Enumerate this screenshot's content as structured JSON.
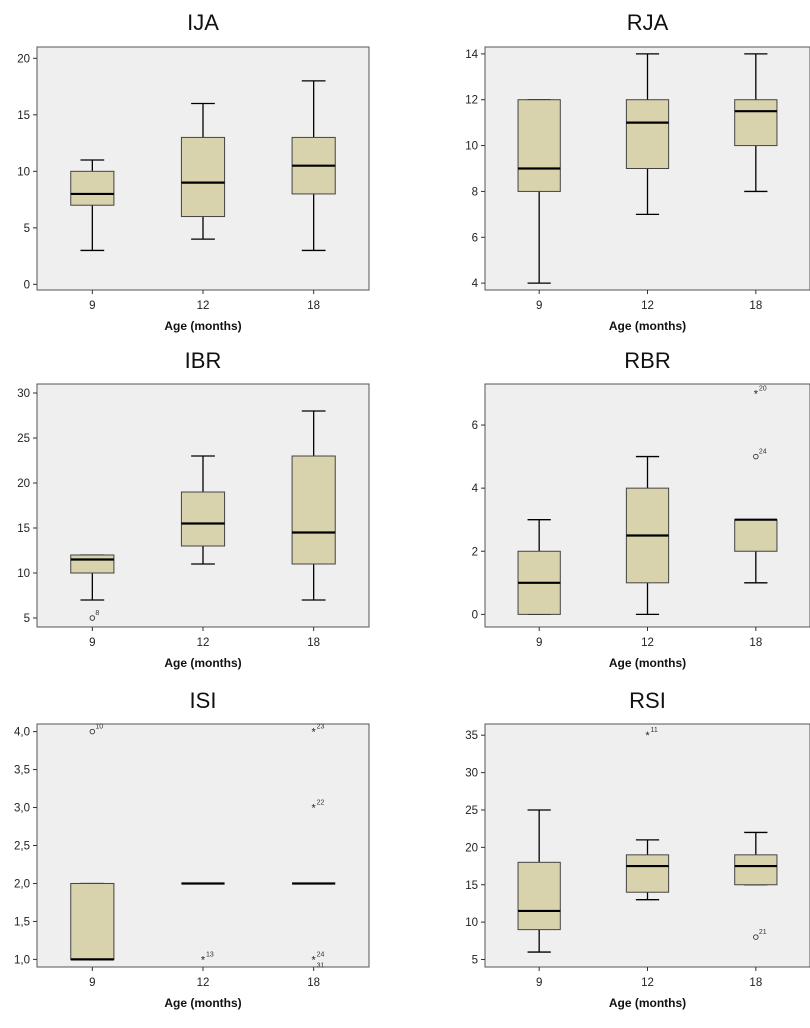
{
  "chart_data": [
    {
      "type": "boxplot",
      "title": "IJA",
      "xlabel": "Age (months)",
      "categories": [
        "9",
        "12",
        "18"
      ],
      "yticks": [
        "0",
        "5",
        "10",
        "15",
        "20"
      ],
      "ylim": [
        -0.5,
        21
      ],
      "boxes": [
        {
          "min": 3,
          "q1": 7,
          "median": 8,
          "q3": 10,
          "max": 11,
          "outliers": []
        },
        {
          "min": 4,
          "q1": 6,
          "median": 9,
          "q3": 13,
          "max": 16,
          "outliers": []
        },
        {
          "min": 3,
          "q1": 8,
          "median": 10.5,
          "q3": 13,
          "max": 18,
          "outliers": []
        }
      ]
    },
    {
      "type": "boxplot",
      "title": "RJA",
      "xlabel": "Age (months)",
      "categories": [
        "9",
        "12",
        "18"
      ],
      "yticks": [
        "4",
        "6",
        "8",
        "10",
        "12",
        "14"
      ],
      "ylim": [
        3.7,
        14.3
      ],
      "boxes": [
        {
          "min": 4,
          "q1": 8,
          "median": 9,
          "q3": 12,
          "max": 12,
          "outliers": []
        },
        {
          "min": 7,
          "q1": 9,
          "median": 11,
          "q3": 12,
          "max": 14,
          "outliers": []
        },
        {
          "min": 8,
          "q1": 10,
          "median": 11.5,
          "q3": 12,
          "max": 14,
          "outliers": []
        }
      ]
    },
    {
      "type": "boxplot",
      "title": "IBR",
      "xlabel": "Age (months)",
      "categories": [
        "9",
        "12",
        "18"
      ],
      "yticks": [
        "5",
        "10",
        "15",
        "20",
        "25",
        "30"
      ],
      "ylim": [
        4,
        31
      ],
      "boxes": [
        {
          "min": 7,
          "q1": 10,
          "median": 11.5,
          "q3": 12,
          "max": 12,
          "outliers": [
            {
              "value": 5,
              "marker": "o",
              "label": "8"
            }
          ]
        },
        {
          "min": 11,
          "q1": 13,
          "median": 15.5,
          "q3": 19,
          "max": 23,
          "outliers": []
        },
        {
          "min": 7,
          "q1": 11,
          "median": 14.5,
          "q3": 23,
          "max": 28,
          "outliers": []
        }
      ]
    },
    {
      "type": "boxplot",
      "title": "RBR",
      "xlabel": "Age (months)",
      "categories": [
        "9",
        "12",
        "18"
      ],
      "yticks": [
        "0",
        "2",
        "4",
        "6"
      ],
      "ylim": [
        -0.4,
        7.3
      ],
      "boxes": [
        {
          "min": 0,
          "q1": 0,
          "median": 1,
          "q3": 2,
          "max": 3,
          "outliers": []
        },
        {
          "min": 0,
          "q1": 1,
          "median": 2.5,
          "q3": 4,
          "max": 5,
          "outliers": []
        },
        {
          "min": 1,
          "q1": 2,
          "median": 3,
          "q3": 3,
          "max": 3,
          "outliers": [
            {
              "value": 5,
              "marker": "o",
              "label": "24"
            },
            {
              "value": 7,
              "marker": "*",
              "label": "20"
            }
          ]
        }
      ]
    },
    {
      "type": "boxplot",
      "title": "ISI",
      "xlabel": "Age (months)",
      "categories": [
        "9",
        "12",
        "18"
      ],
      "yticks": [
        "1,0",
        "1,5",
        "2,0",
        "2,5",
        "3,0",
        "3,5",
        "4,0"
      ],
      "ylim": [
        0.9,
        4.1
      ],
      "boxes": [
        {
          "min": 1,
          "q1": 1,
          "median": 1,
          "q3": 2,
          "max": 2,
          "outliers": [
            {
              "value": 4,
              "marker": "o",
              "label": "10"
            }
          ]
        },
        {
          "min": 2,
          "q1": 2,
          "median": 2,
          "q3": 2,
          "max": 2,
          "outliers": [
            {
              "value": 1,
              "marker": "*",
              "label": "13"
            }
          ]
        },
        {
          "min": 2,
          "q1": 2,
          "median": 2,
          "q3": 2,
          "max": 2,
          "outliers": [
            {
              "value": 1,
              "marker": "*",
              "label": "24"
            },
            {
              "value": 1,
              "marker": "",
              "label": "31"
            },
            {
              "value": 3,
              "marker": "*",
              "label": "22"
            },
            {
              "value": 4,
              "marker": "*",
              "label": "23"
            }
          ]
        }
      ]
    },
    {
      "type": "boxplot",
      "title": "RSI",
      "xlabel": "Age (months)",
      "categories": [
        "9",
        "12",
        "18"
      ],
      "yticks": [
        "5",
        "10",
        "15",
        "20",
        "25",
        "30",
        "35"
      ],
      "ylim": [
        4,
        36.5
      ],
      "boxes": [
        {
          "min": 6,
          "q1": 9,
          "median": 11.5,
          "q3": 18,
          "max": 25,
          "outliers": []
        },
        {
          "min": 13,
          "q1": 14,
          "median": 17.5,
          "q3": 19,
          "max": 21,
          "outliers": [
            {
              "value": 35,
              "marker": "*",
              "label": "11"
            }
          ]
        },
        {
          "min": 15,
          "q1": 15,
          "median": 17.5,
          "q3": 19,
          "max": 22,
          "outliers": [
            {
              "value": 8,
              "marker": "o",
              "label": "21"
            }
          ]
        }
      ]
    }
  ],
  "colors": {
    "box_fill": "#d8d3ad",
    "frame_fill": "#efefef",
    "line": "#000000"
  }
}
